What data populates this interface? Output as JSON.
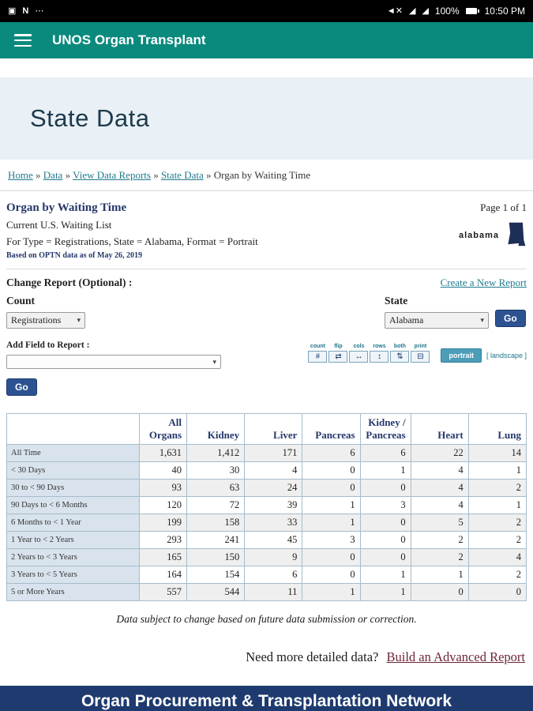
{
  "status_bar": {
    "time": "10:50 PM",
    "battery_pct": "100%"
  },
  "app_bar": {
    "title": "UNOS Organ Transplant"
  },
  "page_header": {
    "title": "State Data"
  },
  "breadcrumb": {
    "separator": "»",
    "items": [
      {
        "label": "Home",
        "link": true
      },
      {
        "label": "Data",
        "link": true
      },
      {
        "label": "View Data Reports",
        "link": true
      },
      {
        "label": "State Data",
        "link": true
      },
      {
        "label": "Organ by Waiting Time",
        "link": false
      }
    ]
  },
  "report": {
    "title": "Organ by Waiting Time",
    "page_indicator": "Page 1 of 1",
    "line1": "Current U.S. Waiting List",
    "line2": "For Type = Registrations, State = Alabama, Format = Portrait",
    "line3": "Based on OPTN data as of May 26, 2019",
    "state_logo_label": "alabama"
  },
  "controls": {
    "change_report_heading": "Change Report (Optional) :",
    "create_new_report": "Create a New Report",
    "count_label": "Count",
    "state_label": "State",
    "count_value": "Registrations",
    "state_value": "Alabama",
    "go": "Go",
    "add_field_heading": "Add Field to Report :",
    "toolbar": {
      "buttons": [
        {
          "label": "count",
          "glyph": "#"
        },
        {
          "label": "flip",
          "glyph": "⇄"
        },
        {
          "label": "cols",
          "glyph": "↔"
        },
        {
          "label": "rows",
          "glyph": "↕"
        },
        {
          "label": "both",
          "glyph": "⇅"
        },
        {
          "label": "print",
          "glyph": "⊟"
        }
      ],
      "portrait": "portrait",
      "landscape": "[ landscape ]"
    }
  },
  "table": {
    "columns": [
      "",
      "All Organs",
      "Kidney",
      "Liver",
      "Pancreas",
      "Kidney / Pancreas",
      "Heart",
      "Lung"
    ],
    "rows": [
      {
        "label": "All Time",
        "values": [
          "1,631",
          "1,412",
          "171",
          "6",
          "6",
          "22",
          "14"
        ]
      },
      {
        "label": "< 30 Days",
        "values": [
          "40",
          "30",
          "4",
          "0",
          "1",
          "4",
          "1"
        ]
      },
      {
        "label": "30 to < 90 Days",
        "values": [
          "93",
          "63",
          "24",
          "0",
          "0",
          "4",
          "2"
        ]
      },
      {
        "label": "90 Days to < 6 Months",
        "values": [
          "120",
          "72",
          "39",
          "1",
          "3",
          "4",
          "1"
        ]
      },
      {
        "label": "6 Months to < 1 Year",
        "values": [
          "199",
          "158",
          "33",
          "1",
          "0",
          "5",
          "2"
        ]
      },
      {
        "label": "1 Year to < 2 Years",
        "values": [
          "293",
          "241",
          "45",
          "3",
          "0",
          "2",
          "2"
        ]
      },
      {
        "label": "2 Years to < 3 Years",
        "values": [
          "165",
          "150",
          "9",
          "0",
          "0",
          "2",
          "4"
        ]
      },
      {
        "label": "3 Years to < 5 Years",
        "values": [
          "164",
          "154",
          "6",
          "0",
          "1",
          "1",
          "2"
        ]
      },
      {
        "label": "5 or More Years",
        "values": [
          "557",
          "544",
          "11",
          "1",
          "1",
          "0",
          "0"
        ]
      }
    ]
  },
  "notes": {
    "disclaimer": "Data subject to change based on future data submission or correction.",
    "cta_text": "Need more detailed data?",
    "cta_link": "Build an Advanced Report"
  },
  "footer": {
    "title": "Organ Procurement & Transplantation Network"
  },
  "colors": {
    "app_bar": "#0a8a7d",
    "page_band": "#e9f0f6",
    "page_title": "#1c3a4b",
    "link": "#1f7a8e",
    "heading": "#26386b",
    "go_button": "#2d5291",
    "row_label_bg": "#d9e3ed",
    "alt_row_bg": "#efefef",
    "table_border": "#a6bccb",
    "portrait_bg": "#4d9db8",
    "cta_link": "#6e2639",
    "footer_bg": "#1e3a6e",
    "state_icon": "#1e2f57"
  }
}
